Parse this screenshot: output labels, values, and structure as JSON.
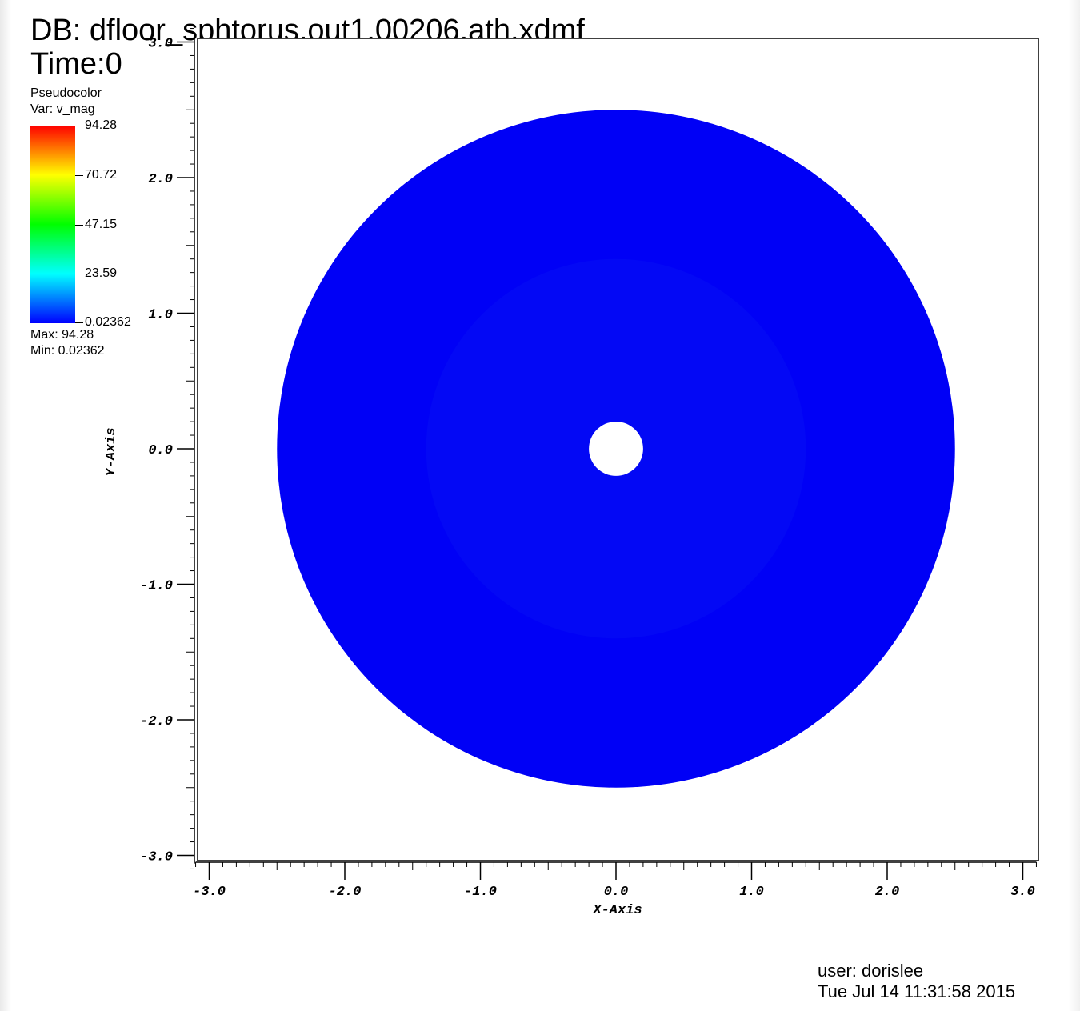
{
  "header": {
    "db_label": "DB: dfloor_sphtorus.out1.00206.ath.xdmf",
    "time_label": "Time:0"
  },
  "legend": {
    "title": "Pseudocolor",
    "var_label": "Var: v_mag",
    "ticks": [
      "94.28",
      "70.72",
      "47.15",
      "23.59",
      "0.02362"
    ],
    "max_label": "Max:  94.28",
    "min_label": "Min:  0.02362"
  },
  "footer": {
    "user_label": "user: dorislee",
    "date_label": "Tue Jul 14 11:31:58 2015"
  },
  "colors": {
    "disk": "#0000f6",
    "inner_ring": "#0a18f4",
    "colormap": [
      "#0000ff",
      "#00ffff",
      "#00ff00",
      "#ffff00",
      "#ff0000"
    ]
  },
  "chart_data": {
    "type": "pseudocolor",
    "variable": "v_mag",
    "xlabel": "X-Axis",
    "ylabel": "Y-Axis",
    "xlim": [
      -3.1,
      3.1
    ],
    "ylim": [
      -3.06,
      3.06
    ],
    "x_ticks": [
      "-3.0",
      "-2.0",
      "-1.0",
      "0.0",
      "1.0",
      "2.0",
      "3.0"
    ],
    "y_ticks": [
      "-3.0",
      "-2.0",
      "-1.0",
      "0.0",
      "1.0",
      "2.0",
      "3.0"
    ],
    "color_min": 0.02362,
    "color_max": 94.28,
    "shape": {
      "kind": "annulus",
      "center": [
        0.0,
        0.0
      ],
      "outer_radius": 2.5,
      "inner_radius": 0.2,
      "value": 0.02362
    }
  }
}
